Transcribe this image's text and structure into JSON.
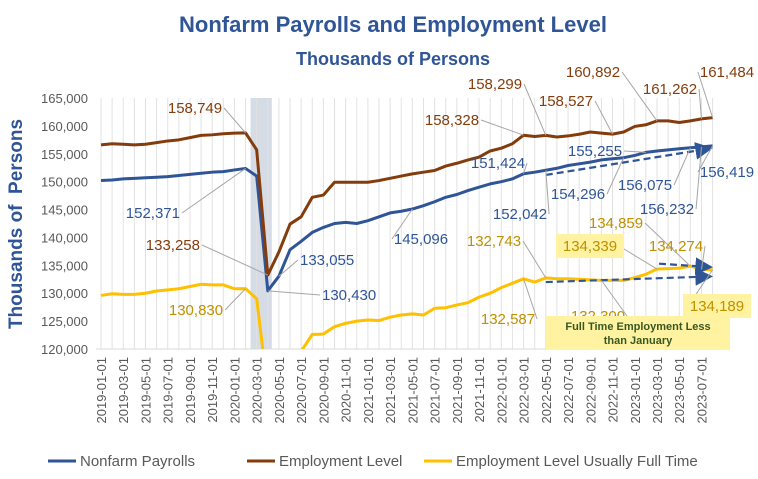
{
  "chart_data": {
    "type": "line",
    "title": "Nonfarm Payrolls and Employment Level",
    "subtitle": "Thousands of Persons",
    "ylabel": "Thousands of  Persons",
    "xlabel": "",
    "ylim": [
      120000,
      165000
    ],
    "yticks": [
      "120,000",
      "125,000",
      "130,000",
      "135,000",
      "140,000",
      "145,000",
      "150,000",
      "155,000",
      "160,000",
      "165,000"
    ],
    "xticks": [
      "2019-01-01",
      "2019-03-01",
      "2019-05-01",
      "2019-07-01",
      "2019-09-01",
      "2019-11-01",
      "2020-01-01",
      "2020-03-01",
      "2020-05-01",
      "2020-07-01",
      "2020-09-01",
      "2020-11-01",
      "2021-01-01",
      "2021-03-01",
      "2021-05-01",
      "2021-07-01",
      "2021-09-01",
      "2021-11-01",
      "2022-01-01",
      "2022-03-01",
      "2022-05-01",
      "2022-07-01",
      "2022-09-01",
      "2022-11-01",
      "2023-01-01",
      "2023-03-01",
      "2023-05-01",
      "2023-07-01"
    ],
    "x_start": "2019-01",
    "x_frequency": "monthly",
    "grid": "vertical",
    "recession_shading": {
      "start_index": 13,
      "end_index": 15
    },
    "legend_position": "bottom",
    "series": [
      {
        "name": "Nonfarm Payrolls",
        "color": "#2F5597",
        "values": [
          150200,
          150300,
          150500,
          150600,
          150700,
          150800,
          150900,
          151100,
          151300,
          151500,
          151700,
          151800,
          152100,
          152371,
          151000,
          130430,
          133055,
          137800,
          139300,
          140900,
          141800,
          142500,
          142700,
          142500,
          143000,
          143700,
          144400,
          144700,
          145096,
          145700,
          146400,
          147200,
          147700,
          148400,
          149000,
          149600,
          150000,
          150500,
          151424,
          151700,
          152042,
          152400,
          152900,
          153200,
          153500,
          153900,
          154100,
          154296,
          154700,
          155255,
          155500,
          155700,
          155900,
          156075,
          156232,
          156419
        ]
      },
      {
        "name": "Employment Level",
        "color": "#843C0C",
        "values": [
          156600,
          156800,
          156700,
          156600,
          156700,
          157000,
          157300,
          157500,
          157900,
          158300,
          158400,
          158600,
          158700,
          158749,
          155700,
          133258,
          137400,
          142400,
          143700,
          147200,
          147600,
          149900,
          149900,
          149900,
          149900,
          150200,
          150600,
          151000,
          151400,
          151700,
          152000,
          152800,
          153300,
          153900,
          154400,
          155500,
          156000,
          156800,
          158328,
          158100,
          158299,
          158000,
          158200,
          158500,
          158900,
          158700,
          158527,
          158900,
          159900,
          160200,
          160892,
          160900,
          160600,
          160900,
          161262,
          161484
        ]
      },
      {
        "name": "Employment Level Usually Full Time",
        "color": "#FFC000",
        "values": [
          129600,
          129900,
          129800,
          129800,
          130000,
          130400,
          130600,
          130800,
          131200,
          131600,
          131500,
          131500,
          130800,
          130830,
          129000,
          112500,
          114000,
          117800,
          119600,
          122600,
          122700,
          124000,
          124600,
          125000,
          125200,
          125100,
          125700,
          126100,
          126300,
          126100,
          127300,
          127400,
          127900,
          128300,
          129300,
          130000,
          131000,
          131800,
          132587,
          132000,
          132743,
          132600,
          132600,
          132500,
          132400,
          132300,
          132300,
          132300,
          132800,
          133400,
          134339,
          134400,
          134500,
          134859,
          134274,
          134189
        ]
      }
    ],
    "annotations": [
      {
        "text": "158,749",
        "series": 1,
        "index": 13
      },
      {
        "text": "152,371",
        "series": 0,
        "index": 13
      },
      {
        "text": "133,258",
        "series": 1,
        "index": 15
      },
      {
        "text": "133,055",
        "series": 0,
        "index": 16
      },
      {
        "text": "130,430",
        "series": 0,
        "index": 15
      },
      {
        "text": "130,830",
        "series": 2,
        "index": 13
      },
      {
        "text": "145,096",
        "series": 0,
        "index": 28
      },
      {
        "text": "151,424",
        "series": 0,
        "index": 38
      },
      {
        "text": "158,328",
        "series": 1,
        "index": 38
      },
      {
        "text": "158,299",
        "series": 1,
        "index": 40
      },
      {
        "text": "158,527",
        "series": 1,
        "index": 46
      },
      {
        "text": "160,892",
        "series": 1,
        "index": 50
      },
      {
        "text": "161,262",
        "series": 1,
        "index": 54
      },
      {
        "text": "161,484",
        "series": 1,
        "index": 55
      },
      {
        "text": "155,255",
        "series": 0,
        "index": 49
      },
      {
        "text": "154,296",
        "series": 0,
        "index": 47
      },
      {
        "text": "156,075",
        "series": 0,
        "index": 53
      },
      {
        "text": "156,232",
        "series": 0,
        "index": 54
      },
      {
        "text": "156,419",
        "series": 0,
        "index": 55
      },
      {
        "text": "152,042",
        "series": 0,
        "index": 40
      },
      {
        "text": "132,743",
        "series": 2,
        "index": 40
      },
      {
        "text": "132,587",
        "series": 2,
        "index": 38
      },
      {
        "text": "134,859",
        "series": 2,
        "index": 53
      },
      {
        "text": "134,339",
        "series": 2,
        "index": 50,
        "highlight": true
      },
      {
        "text": "134,274",
        "series": 2,
        "index": 54
      },
      {
        "text": "132,300",
        "series": 2,
        "index": 45
      },
      {
        "text": "134,189",
        "series": 2,
        "index": 55,
        "highlight": true
      }
    ],
    "note": "Full Time Employment Less than January",
    "note_lines": [
      "Full Time Employment Less",
      "than January"
    ],
    "annotation_colors": {
      "0": "#2F5597",
      "1": "#843C0C",
      "2": "#BF9000"
    },
    "highlight_color": "#FFF2A0",
    "arrow_color": "#2F5597"
  }
}
